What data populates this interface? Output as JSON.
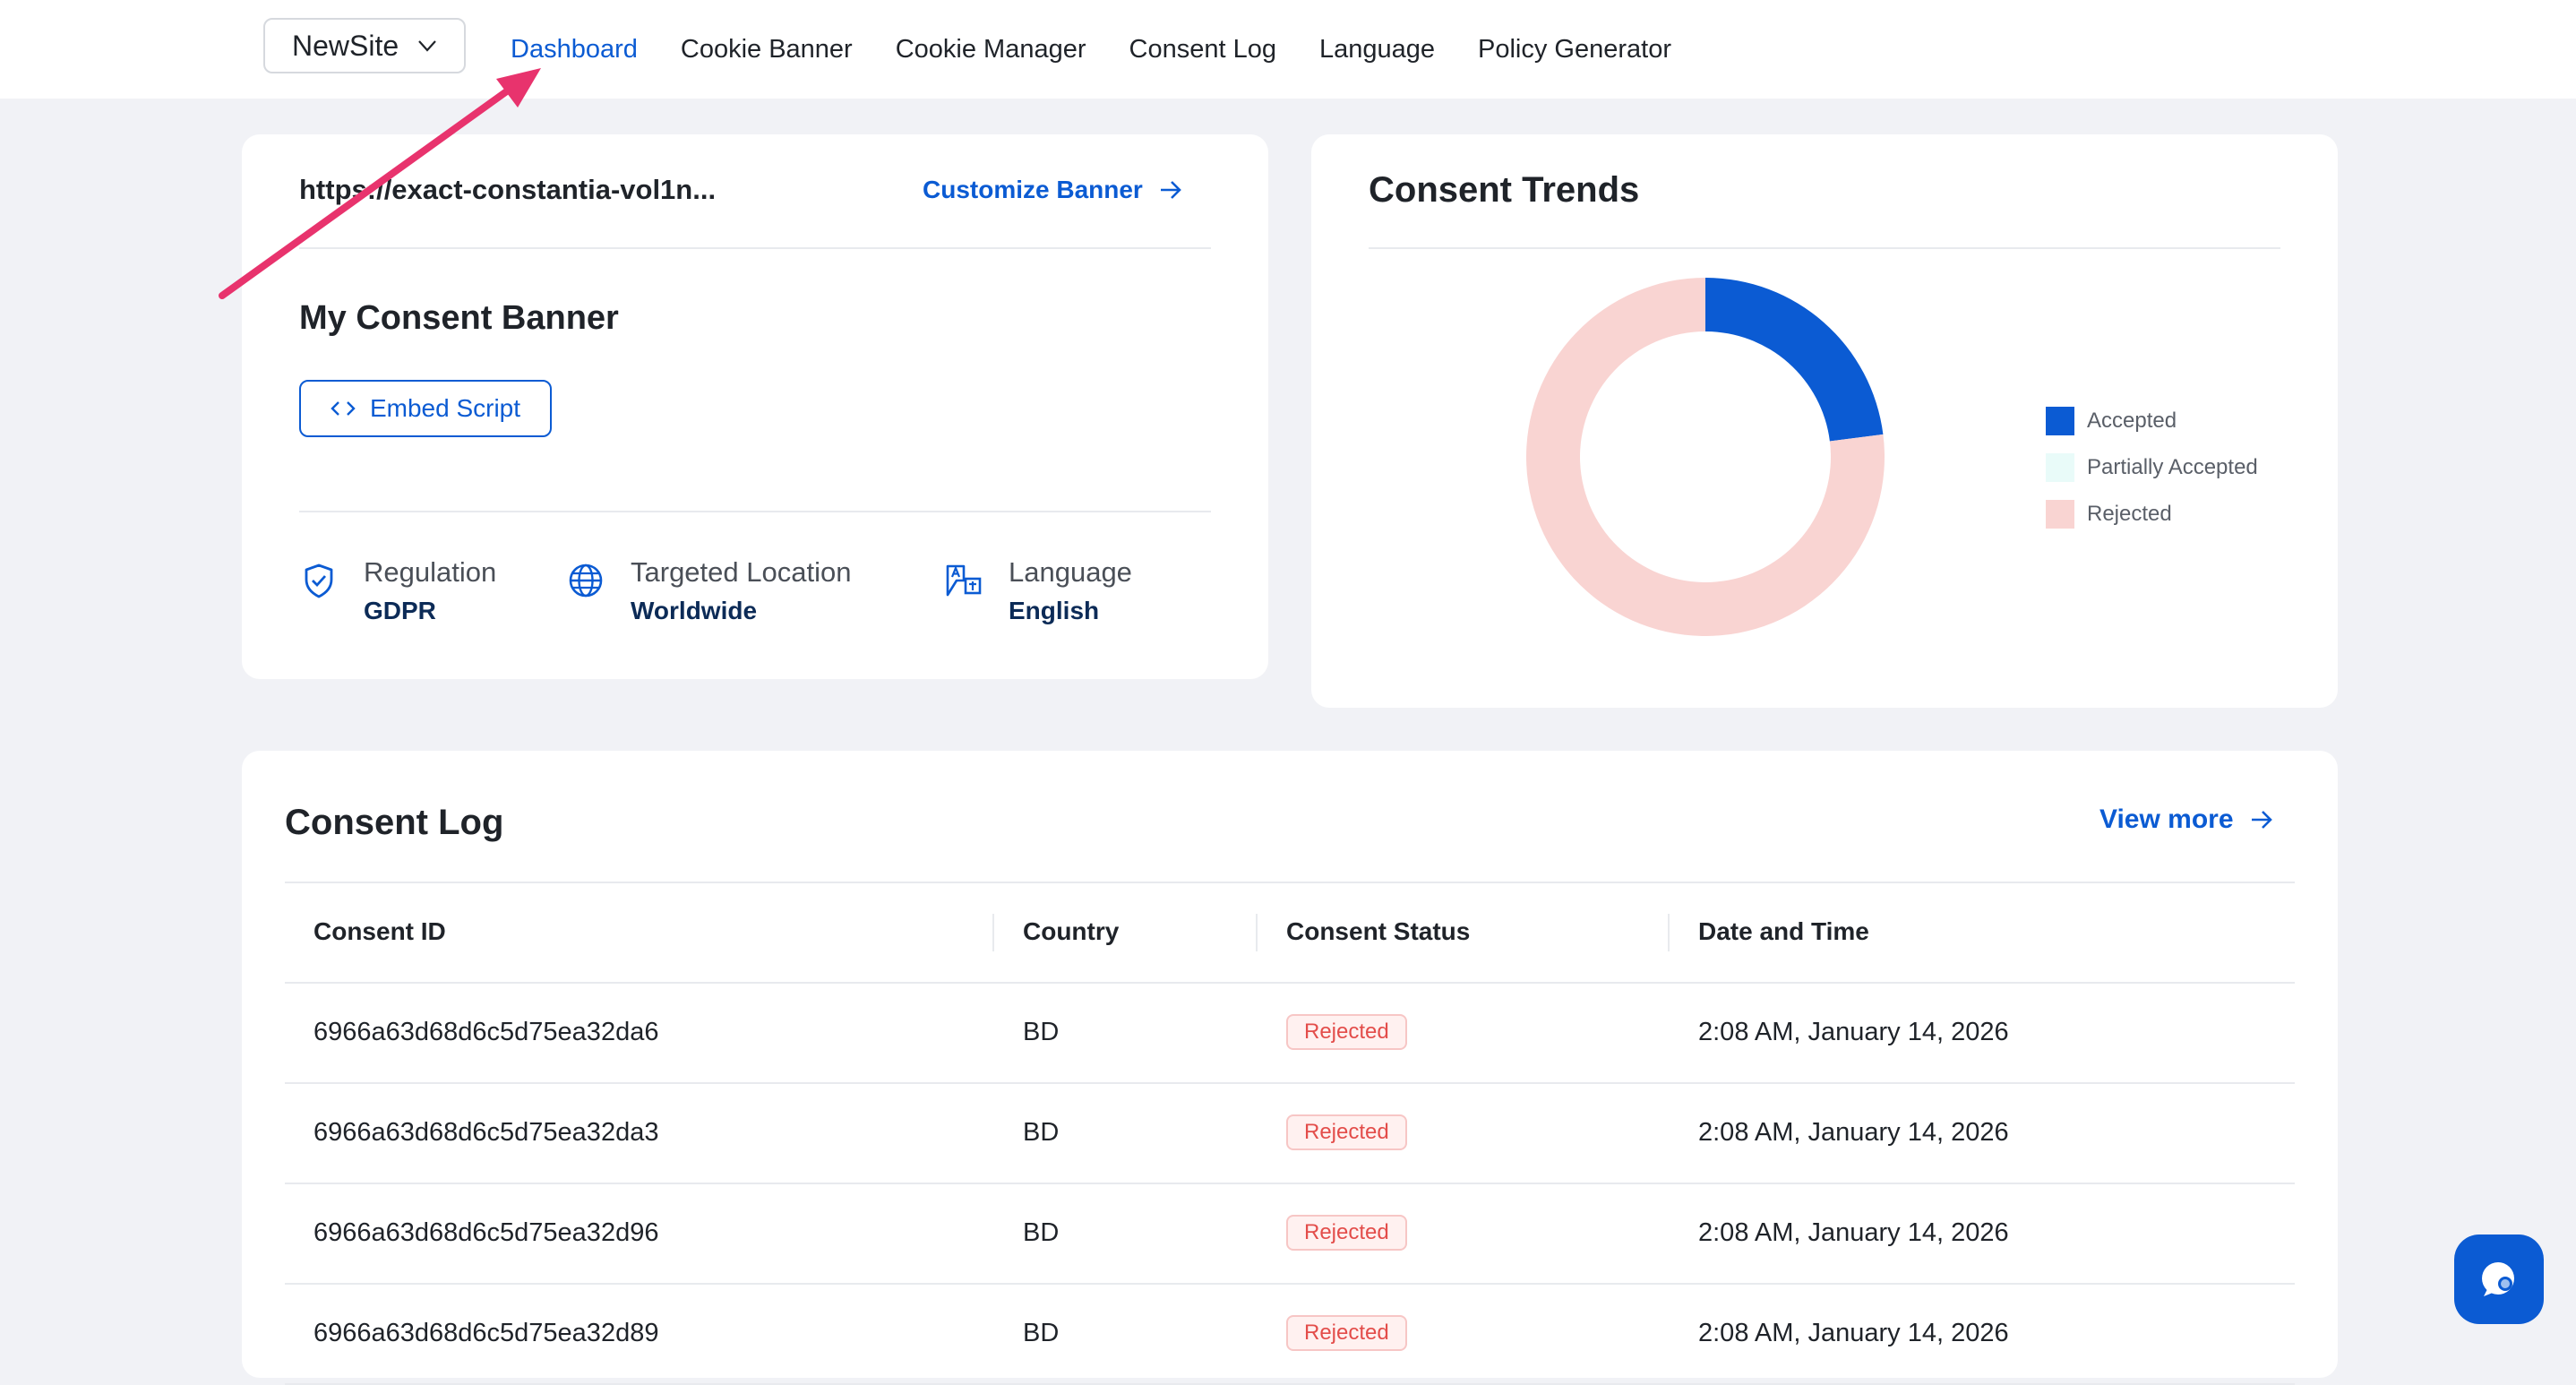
{
  "topbar": {
    "site_selector": "NewSite",
    "nav": [
      "Dashboard",
      "Cookie Banner",
      "Cookie Manager",
      "Consent Log",
      "Language",
      "Policy Generator"
    ],
    "active_nav": "Dashboard"
  },
  "banner_card": {
    "url": "https://exact-constantia-vol1n...",
    "customize_label": "Customize Banner",
    "title": "My Consent Banner",
    "embed_label": "Embed Script",
    "meta": [
      {
        "label": "Regulation",
        "value": "GDPR",
        "icon": "shield-check-icon"
      },
      {
        "label": "Targeted Location",
        "value": "Worldwide",
        "icon": "globe-icon"
      },
      {
        "label": "Language",
        "value": "English",
        "icon": "translate-icon"
      }
    ]
  },
  "trends_card": {
    "title": "Consent Trends"
  },
  "chart_data": {
    "type": "pie",
    "categories": [
      "Accepted",
      "Partially Accepted",
      "Rejected"
    ],
    "values": [
      23,
      0,
      77
    ],
    "colors": [
      "#0b5bd3",
      "#e9fbf9",
      "#f9d4d2"
    ],
    "legend_position": "right",
    "donut": true
  },
  "log_card": {
    "title": "Consent Log",
    "view_more_label": "View more",
    "columns": [
      "Consent ID",
      "Country",
      "Consent Status",
      "Date and Time"
    ],
    "rows": [
      {
        "id": "6966a63d68d6c5d75ea32da6",
        "country": "BD",
        "status": "Rejected",
        "datetime": "2:08 AM, January 14, 2026"
      },
      {
        "id": "6966a63d68d6c5d75ea32da3",
        "country": "BD",
        "status": "Rejected",
        "datetime": "2:08 AM, January 14, 2026"
      },
      {
        "id": "6966a63d68d6c5d75ea32d96",
        "country": "BD",
        "status": "Rejected",
        "datetime": "2:08 AM, January 14, 2026"
      },
      {
        "id": "6966a63d68d6c5d75ea32d89",
        "country": "BD",
        "status": "Rejected",
        "datetime": "2:08 AM, January 14, 2026"
      }
    ]
  },
  "colors": {
    "accent": "#0b5bd3",
    "annotation_arrow": "#e8336d",
    "rejected_badge": "#e34d4a"
  },
  "chat": {
    "icon": "chat-bubble-icon"
  }
}
